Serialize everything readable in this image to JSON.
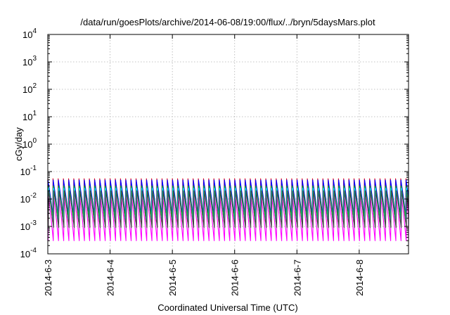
{
  "chart_data": {
    "type": "line",
    "title": "/data/run/goesPlots/archive/2014-06-08/19:00/flux/../bryn/5daysMars.plot",
    "xlabel": "Coordinated Universal Time (UTC)",
    "ylabel": "cGy/day",
    "yscale": "log",
    "ylim": [
      0.0001,
      10000
    ],
    "xlim": [
      "2014-06-03 00:00",
      "2014-06-08 19:00"
    ],
    "grid": true,
    "legend": "none",
    "x_ticks": [
      {
        "value": "2014-06-03",
        "label": "2014-6-3"
      },
      {
        "value": "2014-06-04",
        "label": "2014-6-4"
      },
      {
        "value": "2014-06-05",
        "label": "2014-6-5"
      },
      {
        "value": "2014-06-06",
        "label": "2014-6-6"
      },
      {
        "value": "2014-06-07",
        "label": "2014-6-7"
      },
      {
        "value": "2014-06-08",
        "label": "2014-6-8"
      }
    ],
    "y_ticks": [
      {
        "value": 0.0001,
        "base": "10",
        "exp": "-4"
      },
      {
        "value": 0.001,
        "base": "10",
        "exp": "-3"
      },
      {
        "value": 0.01,
        "base": "10",
        "exp": "-2"
      },
      {
        "value": 0.1,
        "base": "10",
        "exp": "-1"
      },
      {
        "value": 1,
        "base": "10",
        "exp": "0"
      },
      {
        "value": 10,
        "base": "10",
        "exp": "1"
      },
      {
        "value": 100,
        "base": "10",
        "exp": "2"
      },
      {
        "value": 1000,
        "base": "10",
        "exp": "3"
      },
      {
        "value": 10000,
        "base": "10",
        "exp": "4"
      }
    ],
    "period_hours": 2,
    "series": [
      {
        "color": "#ff0000",
        "peak": 0.055,
        "trough": 0.0015
      },
      {
        "color": "#0000ff",
        "peak": 0.05,
        "trough": 0.0025
      },
      {
        "color": "#00c800",
        "peak": 0.03,
        "trough": 0.002
      },
      {
        "color": "#00ffff",
        "peak": 0.025,
        "trough": 0.0012
      },
      {
        "color": "#ff00ff",
        "peak": 0.012,
        "trough": 0.0003
      },
      {
        "color": "#404040",
        "peak": 0.02,
        "trough": 0.0009
      }
    ]
  }
}
